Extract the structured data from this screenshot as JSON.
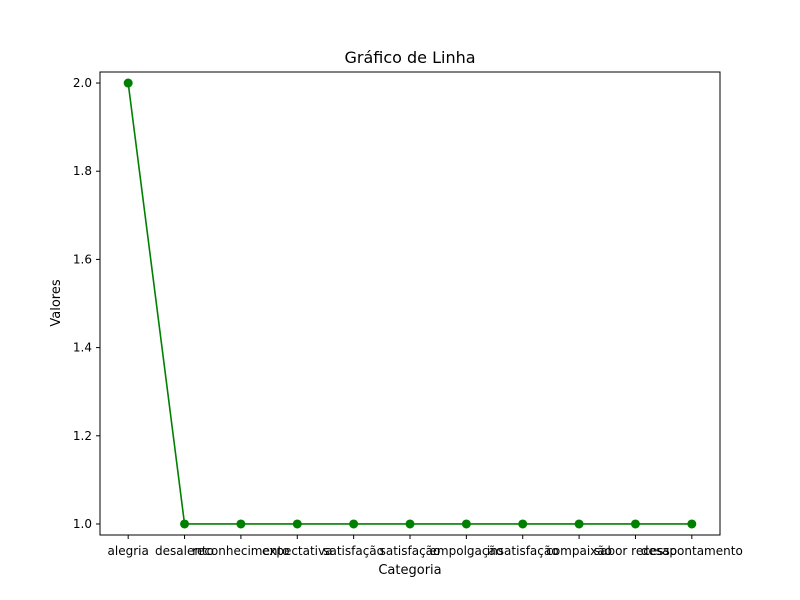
{
  "chart_data": {
    "type": "line",
    "title": "Gráfico de Linha",
    "xlabel": "Categoria",
    "ylabel": "Valores",
    "categories": [
      "alegria",
      "desalento",
      "reconhecimento",
      "expectativa",
      "satisfação",
      "satisfação",
      "empolgação",
      "insatisfação",
      "compaixão",
      "sabor recesso",
      "desapontamento"
    ],
    "series": [
      {
        "values": [
          2,
          1,
          1,
          1,
          1,
          1,
          1,
          1,
          1,
          1,
          1
        ],
        "color": "#008000"
      }
    ],
    "ylim": [
      0.975,
      2.025
    ],
    "yticks": [
      1.0,
      1.2,
      1.4,
      1.6,
      1.8,
      2.0
    ],
    "ytick_labels": [
      "1.0",
      "1.2",
      "1.4",
      "1.6",
      "1.8",
      "2.0"
    ],
    "grid": false,
    "legend": "none"
  }
}
